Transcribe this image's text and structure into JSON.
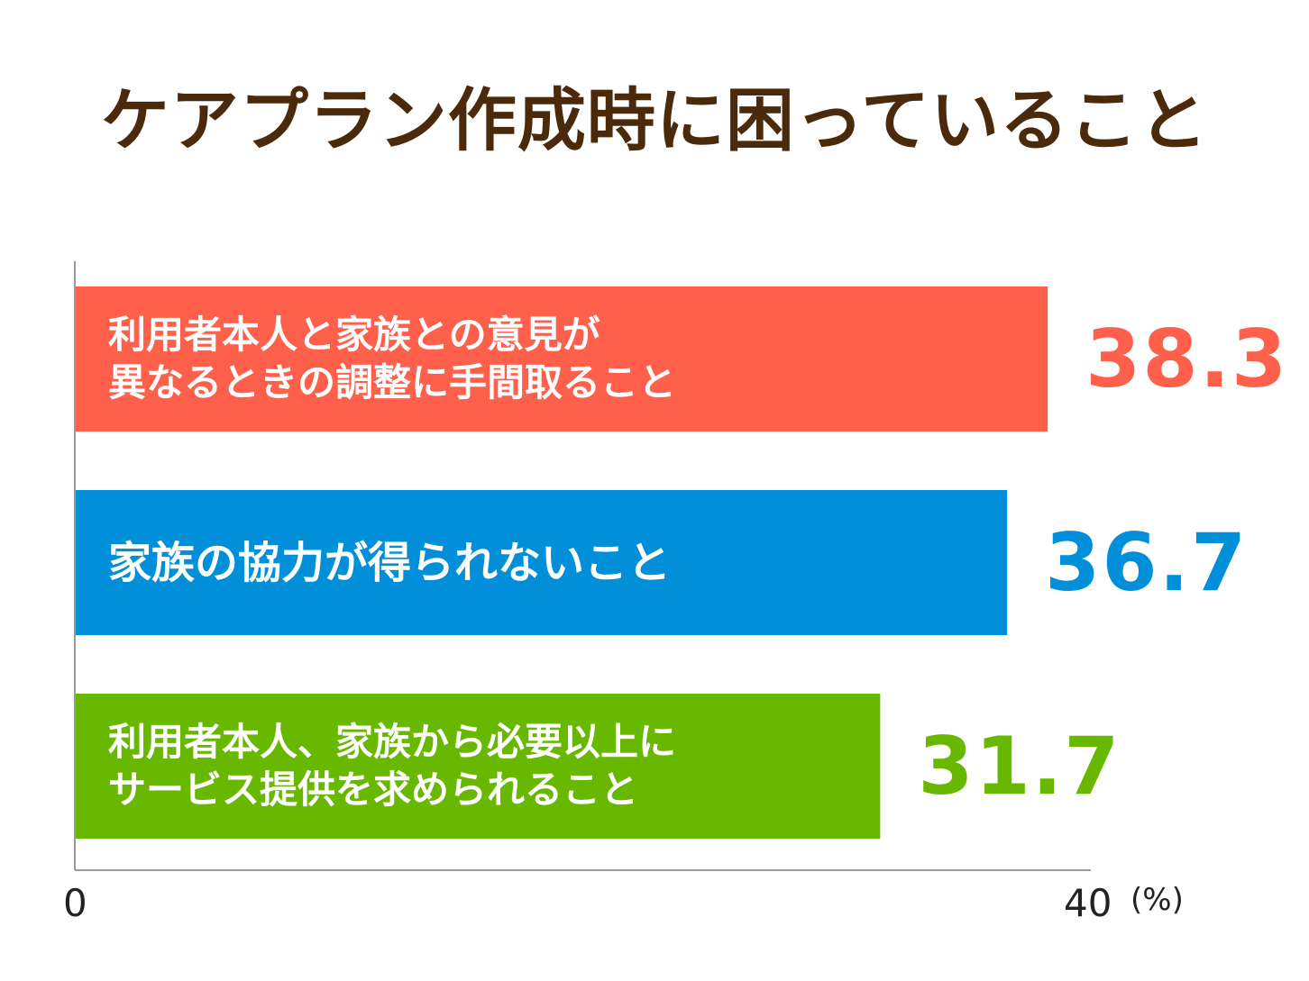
{
  "chart_data": {
    "type": "bar",
    "orientation": "horizontal",
    "title": "ケアプラン作成時に困っていること",
    "categories": [
      "利用者本人と家族との意見が\n異なるときの調整に手間取ること",
      "家族の協力が得られないこと",
      "利用者本人、家族から必要以上に\nサービス提供を求められること"
    ],
    "values": [
      38.3,
      36.7,
      31.7
    ],
    "value_labels": [
      "38.3",
      "36.7",
      "31.7"
    ],
    "colors": [
      "#ff604c",
      "#008fd8",
      "#68b800"
    ],
    "xlim": [
      0,
      40
    ],
    "tick_labels": [
      "0",
      "40"
    ],
    "unit": "(%)",
    "grid": false,
    "legend": "none"
  }
}
